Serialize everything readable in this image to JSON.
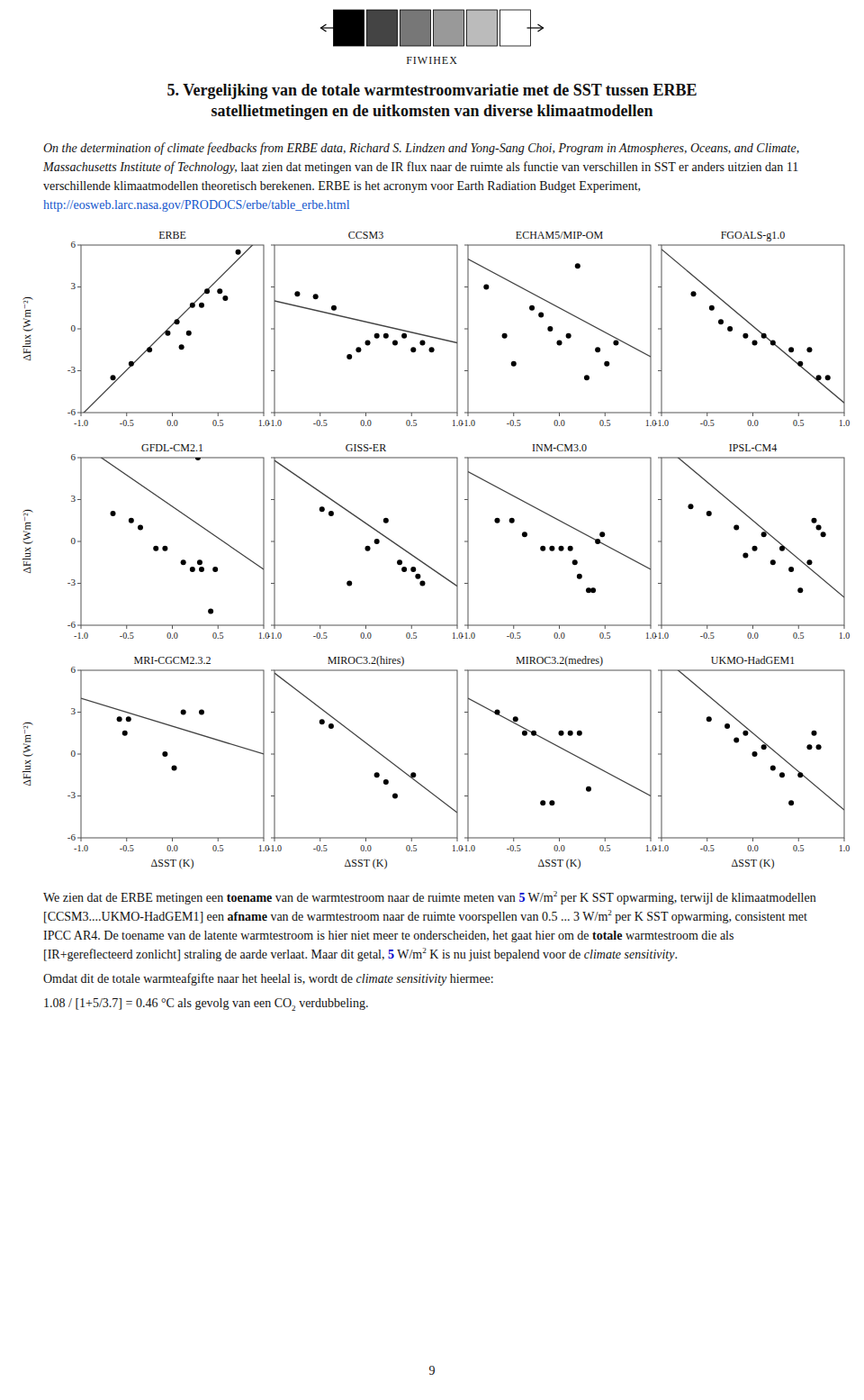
{
  "chart_data": {
    "type": "scatter",
    "title": "5. Vergelijking van de totale warmtestroomvariatie met de SST tussen ERBE\nsatellietmetingen en de uitkomsten van diverse klimaatmodellen",
    "xlabel": "ΔSST (K)",
    "ylabel": "ΔFlux (Wm⁻²)",
    "xlim": [
      -1.0,
      1.0
    ],
    "ylim": [
      -6,
      6
    ],
    "xticks": [
      {
        "value": -1.0,
        "label": "-1.0"
      },
      -0.5,
      {
        "value": 0.0,
        "label": "0.0"
      },
      0.5,
      {
        "value": 1.0,
        "label": "1.0"
      }
    ],
    "yticks": [
      -6,
      -3,
      0,
      3,
      6
    ],
    "color": "#000000",
    "panels": [
      {
        "title": "ERBE",
        "x": [
          -0.65,
          -0.45,
          -0.25,
          -0.05,
          0.05,
          0.1,
          0.18,
          0.22,
          0.32,
          0.38,
          0.52,
          0.58,
          0.72
        ],
        "values": [
          -3.5,
          -2.5,
          -1.5,
          -0.3,
          0.5,
          -1.3,
          -0.3,
          1.7,
          1.7,
          2.7,
          2.7,
          2.2,
          5.5
        ],
        "fit": {
          "slope": 6.5,
          "intercept": 0.3,
          "color": "#444444"
        }
      },
      {
        "title": "CCSM3",
        "x": [
          -0.75,
          -0.55,
          -0.35,
          -0.18,
          -0.08,
          0.02,
          0.12,
          0.22,
          0.32,
          0.42,
          0.52,
          0.62,
          0.72
        ],
        "values": [
          2.5,
          2.3,
          1.5,
          -2.0,
          -1.5,
          -1.0,
          -0.5,
          -0.5,
          -1.0,
          -0.5,
          -1.5,
          -1.0,
          -1.5
        ],
        "fit": {
          "slope": -1.5,
          "intercept": 0.5,
          "color": "#444444"
        }
      },
      {
        "title": "ECHAM5/MIP-OM",
        "x": [
          -0.8,
          -0.6,
          -0.5,
          -0.3,
          -0.2,
          -0.1,
          0.0,
          0.1,
          0.2,
          0.3,
          0.42,
          0.52,
          0.62
        ],
        "values": [
          3.0,
          -0.5,
          -2.5,
          1.5,
          1.0,
          0.0,
          -1.0,
          -0.5,
          4.5,
          -3.5,
          -1.5,
          -2.5,
          -1.0
        ],
        "fit": {
          "slope": -3.5,
          "intercept": 1.5,
          "color": "#444444"
        }
      },
      {
        "title": "FGOALS-g1.0",
        "x": [
          -0.65,
          -0.45,
          -0.35,
          -0.25,
          -0.08,
          0.02,
          0.12,
          0.22,
          0.42,
          0.52,
          0.62,
          0.72,
          0.82
        ],
        "values": [
          2.5,
          1.5,
          0.5,
          0.0,
          -0.5,
          -1.0,
          -0.5,
          -1.0,
          -1.5,
          -2.5,
          -1.5,
          -3.5,
          -3.5
        ],
        "fit": {
          "slope": -5.5,
          "intercept": 0.2,
          "color": "#444444"
        }
      },
      {
        "title": "GFDL-CM2.1",
        "x": [
          -0.65,
          -0.45,
          -0.35,
          -0.18,
          -0.08,
          0.12,
          0.22,
          0.32,
          0.42,
          0.47,
          0.28,
          0.3
        ],
        "values": [
          2.0,
          1.5,
          1.0,
          -0.5,
          -0.5,
          -1.5,
          -2.0,
          -2.0,
          -5.0,
          -2.0,
          6.0,
          -1.5
        ],
        "fit": {
          "slope": -4.5,
          "intercept": 2.5,
          "color": "#444444"
        }
      },
      {
        "title": "GISS-ER",
        "x": [
          -0.48,
          -0.38,
          -0.18,
          0.02,
          0.12,
          0.22,
          0.37,
          0.42,
          0.52,
          0.57,
          0.62
        ],
        "values": [
          2.3,
          2.0,
          -3.0,
          -0.5,
          0.0,
          1.5,
          -1.5,
          -2.0,
          -2.0,
          -2.5,
          -3.0
        ],
        "fit": {
          "slope": -4.5,
          "intercept": 1.3,
          "color": "#444444"
        }
      },
      {
        "title": "INM-CM3.0",
        "x": [
          -0.68,
          -0.52,
          -0.38,
          -0.18,
          -0.08,
          0.02,
          0.12,
          0.17,
          0.22,
          0.32,
          0.37,
          0.42,
          0.47
        ],
        "values": [
          1.5,
          1.5,
          0.5,
          -0.5,
          -0.5,
          -0.5,
          -0.5,
          -1.5,
          -2.5,
          -3.5,
          -3.5,
          0.0,
          0.5
        ],
        "fit": {
          "slope": -3.5,
          "intercept": 1.5,
          "color": "#444444"
        }
      },
      {
        "title": "IPSL-CM4",
        "x": [
          -0.68,
          -0.48,
          -0.18,
          -0.08,
          0.02,
          0.12,
          0.22,
          0.32,
          0.42,
          0.52,
          0.62,
          0.67,
          0.72,
          0.77
        ],
        "values": [
          2.5,
          2.0,
          1.0,
          -1.0,
          -0.5,
          0.5,
          -1.5,
          -0.5,
          -2.0,
          -3.5,
          -1.5,
          1.5,
          1.0,
          0.5
        ],
        "fit": {
          "slope": -5.5,
          "intercept": 1.5,
          "color": "#444444"
        }
      },
      {
        "title": "MRI-CGCM2.3.2",
        "x": [
          -0.58,
          -0.48,
          -0.52,
          -0.08,
          0.02,
          0.12,
          0.32
        ],
        "values": [
          2.5,
          2.5,
          1.5,
          0.0,
          -1.0,
          3.0,
          3.0
        ],
        "fit": {
          "slope": -2.0,
          "intercept": 2.0,
          "color": "#444444"
        }
      },
      {
        "title": "MIROC3.2(hires)",
        "x": [
          -0.48,
          -0.38,
          0.12,
          0.22,
          0.32,
          0.52
        ],
        "values": [
          2.3,
          2.0,
          -1.5,
          -2.0,
          -3.0,
          -1.5
        ],
        "fit": {
          "slope": -5.0,
          "intercept": 0.8,
          "color": "#444444"
        }
      },
      {
        "title": "MIROC3.2(medres)",
        "x": [
          -0.68,
          -0.48,
          -0.38,
          -0.28,
          -0.18,
          -0.08,
          0.02,
          0.12,
          0.22,
          0.32
        ],
        "values": [
          3.0,
          2.5,
          1.5,
          1.5,
          -3.5,
          -3.5,
          1.5,
          1.5,
          1.5,
          -2.5
        ],
        "fit": {
          "slope": -3.5,
          "intercept": 0.5,
          "color": "#444444"
        }
      },
      {
        "title": "UKMO-HadGEM1",
        "x": [
          -0.48,
          -0.28,
          -0.18,
          -0.08,
          0.02,
          0.12,
          0.22,
          0.32,
          0.42,
          0.52,
          0.62,
          0.67,
          0.72
        ],
        "values": [
          2.5,
          2.0,
          1.0,
          1.5,
          0.0,
          0.5,
          -1.0,
          -1.5,
          -3.5,
          -1.5,
          0.5,
          1.5,
          0.5
        ],
        "fit": {
          "slope": -5.5,
          "intercept": 1.5,
          "color": "#444444"
        }
      }
    ]
  },
  "page": {
    "logo": {
      "text": "FIWIHEX",
      "colors": [
        "#000000",
        "#444444",
        "#777777",
        "#999999",
        "#bbbbbb",
        "#ffffff"
      ]
    },
    "intro": [
      [
        [
          {
            "text": "On the determination of climate feedbacks from ERBE data, Richard S. Lindzen and Yong-Sang",
            "style": "italic"
          }
        ],
        [
          {
            "text": "Choi, Program in Atmospheres, Oceans, and Climate, Massachusetts Institute of Technology,",
            "style": "italic"
          }
        ],
        [
          {
            "text": "laat zien dat metingen van de IR flux naar de ruimte als functie van verschillen in SST er anders"
          }
        ],
        [
          {
            "text": "uitzien dan 11 verschillende klimaatmodellen theoretisch berekenen. ERBE is het acronym voor"
          }
        ],
        [
          {
            "text": "Earth Radiation Budget Experiment, "
          },
          {
            "text": "http://eosweb.larc.nasa.gov/PRODOCS/erbe/table_erbe.html",
            "color": "#1155cc"
          }
        ]
      ]
    ],
    "body": [
      [
        [
          {
            "text": "We zien dat de ERBE metingen een "
          },
          {
            "text": "toename",
            "style": "bold"
          },
          {
            "text": " van de warmtestroom naar de ruimte meten van "
          },
          {
            "text": "5",
            "style": "bold",
            "color": "#0000cc"
          },
          {
            "text": " W/m"
          },
          {
            "text": "2",
            "style": "sup"
          },
          {
            "text": " per K SST opwarming, terwijl de klimaatmodellen [CCSM3....UKMO-HadGEM1] een"
          }
        ],
        [
          {
            "text": "afname",
            "style": "bold"
          },
          {
            "text": " van de warmtestroom naar de ruimte voorspellen van 0.5 ... 3 W/m"
          },
          {
            "text": "2",
            "style": "sup"
          },
          {
            "text": " per K SST"
          }
        ],
        [
          {
            "text": "opwarming, consistent met IPCC AR4. De toename van de latente warmtestroom is hier niet meer"
          }
        ],
        [
          {
            "text": "te onderscheiden, het gaat hier om de "
          },
          {
            "text": "totale",
            "style": "bold"
          },
          {
            "text": " warmtestroom die als [IR+gereflecteerd zonlicht]"
          }
        ],
        [
          {
            "text": "straling de aarde verlaat. Maar dit getal, "
          },
          {
            "text": "5",
            "style": "bold",
            "color": "#0000cc"
          },
          {
            "text": " W/m"
          },
          {
            "text": "2",
            "style": "sup"
          },
          {
            "text": " K is nu juist bepalend voor de "
          },
          {
            "text": "climate sensitivity",
            "style": "italic"
          },
          {
            "text": "."
          }
        ]
      ],
      [
        [
          {
            "text": "Omdat dit de totale warmteafgifte naar het heelal is, wordt de "
          },
          {
            "text": "climate sensitivity",
            "style": "italic"
          },
          {
            "text": " hiermee:"
          }
        ]
      ],
      [
        [
          {
            "text": "1.08 / [1+5/3.7] = 0.46 °C als gevolg van een CO"
          },
          {
            "text": "2",
            "style": "sub"
          },
          {
            "text": " verdubbeling."
          }
        ]
      ]
    ],
    "page_number": "9"
  }
}
